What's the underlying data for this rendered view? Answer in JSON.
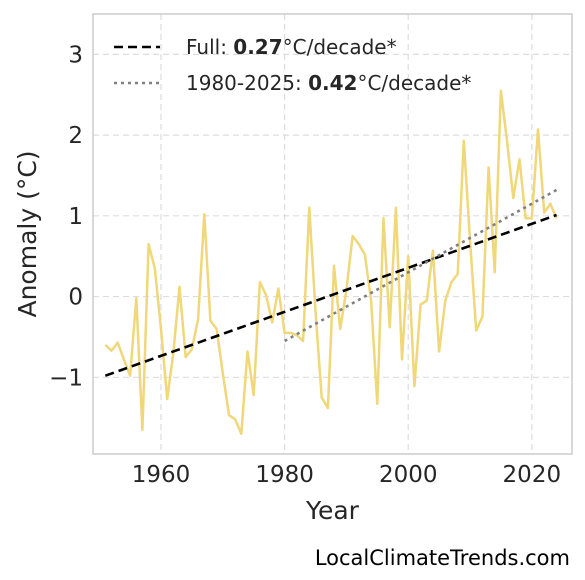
{
  "chart_data": {
    "type": "line",
    "xlabel": "Year",
    "ylabel": "Anomaly (°C)",
    "xlim": [
      1949,
      2026.5
    ],
    "ylim": [
      -1.95,
      3.5
    ],
    "xticks": [
      1960,
      1980,
      2000,
      2020
    ],
    "yticks": [
      -1,
      0,
      1,
      2,
      3
    ],
    "ytick_labels": [
      "−1",
      "0",
      "1",
      "2",
      "3"
    ],
    "grid": true,
    "legend_position": "top-left",
    "series": [
      {
        "color": "#f0d77a",
        "x": [
          1951,
          1952,
          1953,
          1954,
          1955,
          1956,
          1957,
          1958,
          1959,
          1960,
          1961,
          1962,
          1963,
          1964,
          1965,
          1966,
          1967,
          1968,
          1969,
          1970,
          1971,
          1972,
          1973,
          1974,
          1975,
          1976,
          1977,
          1978,
          1979,
          1980,
          1981,
          1982,
          1983,
          1984,
          1985,
          1986,
          1987,
          1988,
          1989,
          1990,
          1991,
          1992,
          1993,
          1994,
          1995,
          1996,
          1997,
          1998,
          1999,
          2000,
          2001,
          2002,
          2003,
          2004,
          2005,
          2006,
          2007,
          2008,
          2009,
          2010,
          2011,
          2012,
          2013,
          2014,
          2015,
          2016,
          2017,
          2018,
          2019,
          2020,
          2021,
          2022,
          2023,
          2024
        ],
        "values": [
          -0.6,
          -0.67,
          -0.57,
          -0.78,
          -0.98,
          -0.02,
          -1.65,
          0.65,
          0.35,
          -0.4,
          -1.27,
          -0.7,
          0.12,
          -0.75,
          -0.65,
          -0.28,
          1.02,
          -0.3,
          -0.4,
          -0.95,
          -1.47,
          -1.52,
          -1.7,
          -0.68,
          -1.22,
          0.18,
          0.02,
          -0.32,
          0.1,
          -0.45,
          -0.45,
          -0.48,
          -0.55,
          1.1,
          -0.18,
          -1.25,
          -1.38,
          0.38,
          -0.4,
          0.08,
          0.75,
          0.65,
          0.52,
          -0.05,
          -1.33,
          0.97,
          -0.38,
          1.1,
          -0.78,
          0.5,
          -1.11,
          -0.1,
          -0.05,
          0.57,
          -0.68,
          -0.05,
          0.18,
          0.28,
          1.93,
          0.7,
          -0.42,
          -0.25,
          1.6,
          0.3,
          2.55,
          1.92,
          1.22,
          1.7,
          0.97,
          0.97,
          2.07,
          1.04,
          1.15,
          0.97
        ]
      }
    ],
    "trendlines": [
      {
        "label_prefix": "Full: ",
        "value": "0.27",
        "unit": "°C/decade*",
        "style": "dashed",
        "color": "#000000",
        "x": [
          1951,
          2024
        ],
        "y": [
          -0.98,
          1.01
        ]
      },
      {
        "label_prefix": "1980-2025: ",
        "value": "0.42",
        "unit": "°C/decade*",
        "style": "dotted",
        "color": "#808080",
        "x": [
          1980,
          2024
        ],
        "y": [
          -0.55,
          1.32
        ]
      }
    ]
  },
  "watermark": "LocalClimateTrends.com"
}
